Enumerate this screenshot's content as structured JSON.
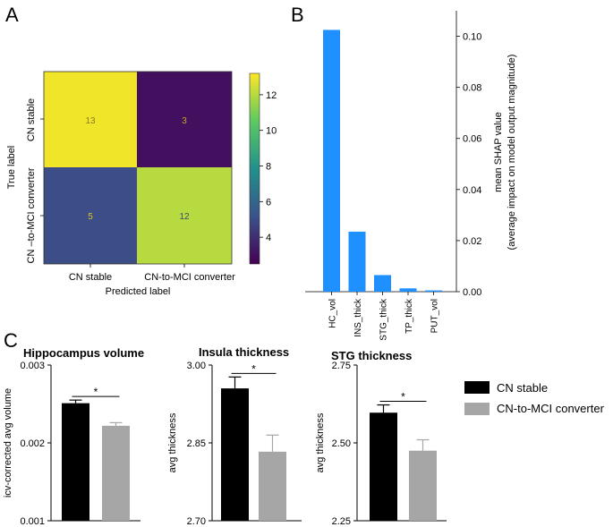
{
  "panels": {
    "a": "A",
    "b": "B",
    "c": "C"
  },
  "chart_data": [
    {
      "type": "heatmap",
      "panel": "A",
      "xlabel": "Predicted label",
      "ylabel": "True label",
      "x_categories": [
        "CN stable",
        "CN-to-MCI converter"
      ],
      "y_categories": [
        "CN stable",
        "CN –to-MCI converter"
      ],
      "matrix": [
        [
          13,
          3
        ],
        [
          5,
          12
        ]
      ],
      "colorbar_ticks": [
        "4",
        "6",
        "8",
        "10",
        "12"
      ],
      "colorbar_range": [
        2.5,
        13.2
      ]
    },
    {
      "type": "bar",
      "panel": "B",
      "categories": [
        "HC_vol",
        "INS_thick",
        "STG_thick",
        "TP_thick",
        "PUT_vol"
      ],
      "values": [
        0.1025,
        0.0235,
        0.0065,
        0.0013,
        0.0005
      ],
      "ylabel": "mean SHAP value",
      "ylabel2": "(average impact on model output magnitude)",
      "yticks": [
        "0.00",
        "0.02",
        "0.04",
        "0.06",
        "0.08",
        "0.10"
      ],
      "ylim": [
        0,
        0.11
      ],
      "color": "#1e90ff"
    },
    {
      "type": "bar",
      "panel": "C",
      "title": "Hippocampus volume",
      "ylabel": "icv-corrected avg volume",
      "yticks": [
        "0.001",
        "0.002",
        "0.003"
      ],
      "ylim": [
        0.001,
        0.003
      ],
      "series": [
        {
          "name": "CN stable",
          "value": 0.00251,
          "error": 4e-05
        },
        {
          "name": "CN-to-MCI converter",
          "value": 0.00222,
          "error": 4e-05
        }
      ],
      "significance": "*"
    },
    {
      "type": "bar",
      "panel": "C",
      "title": "Insula thickness",
      "ylabel": "avg thickness",
      "yticks": [
        "2.70",
        "2.85",
        "3.00"
      ],
      "ylim": [
        2.7,
        3.0
      ],
      "series": [
        {
          "name": "CN stable",
          "value": 2.955,
          "error": 0.022
        },
        {
          "name": "CN-to-MCI converter",
          "value": 2.833,
          "error": 0.032
        }
      ],
      "significance": "*"
    },
    {
      "type": "bar",
      "panel": "C",
      "title": "STG thickness",
      "ylabel": "avg thickness",
      "yticks": [
        "2.25",
        "2.50",
        "2.75"
      ],
      "ylim": [
        2.25,
        2.75
      ],
      "series": [
        {
          "name": "CN stable",
          "value": 2.597,
          "error": 0.025
        },
        {
          "name": "CN-to-MCI converter",
          "value": 2.475,
          "error": 0.035
        }
      ],
      "significance": "*"
    }
  ],
  "legend": [
    {
      "label": "CN stable",
      "color": "#000000"
    },
    {
      "label": "CN-to-MCI converter",
      "color": "#a6a6a6"
    }
  ]
}
